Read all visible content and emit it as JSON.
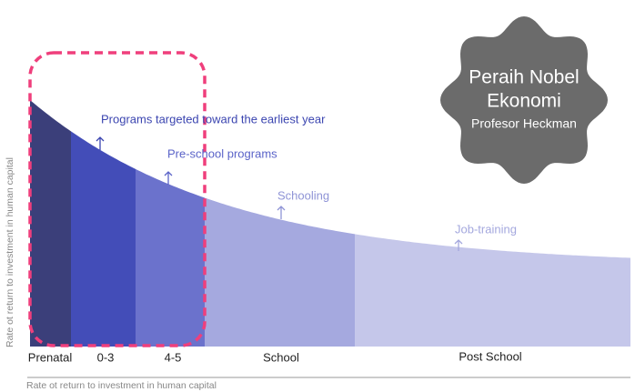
{
  "badge": {
    "lines": [
      "Peraih Nobel",
      "Ekonomi",
      "Profesor Heckman"
    ]
  },
  "annotations": [
    "Programs targeted toward the earliest year",
    "Pre-school programs",
    "Schooling",
    "Job-training"
  ],
  "segments": [
    "Prenatal",
    "0-3",
    "4-5",
    "School",
    "Post School"
  ],
  "y_axis_label": "Rate ot return to investment in human capital",
  "x_axis_label": "Rate ot return to investment in human capital"
}
